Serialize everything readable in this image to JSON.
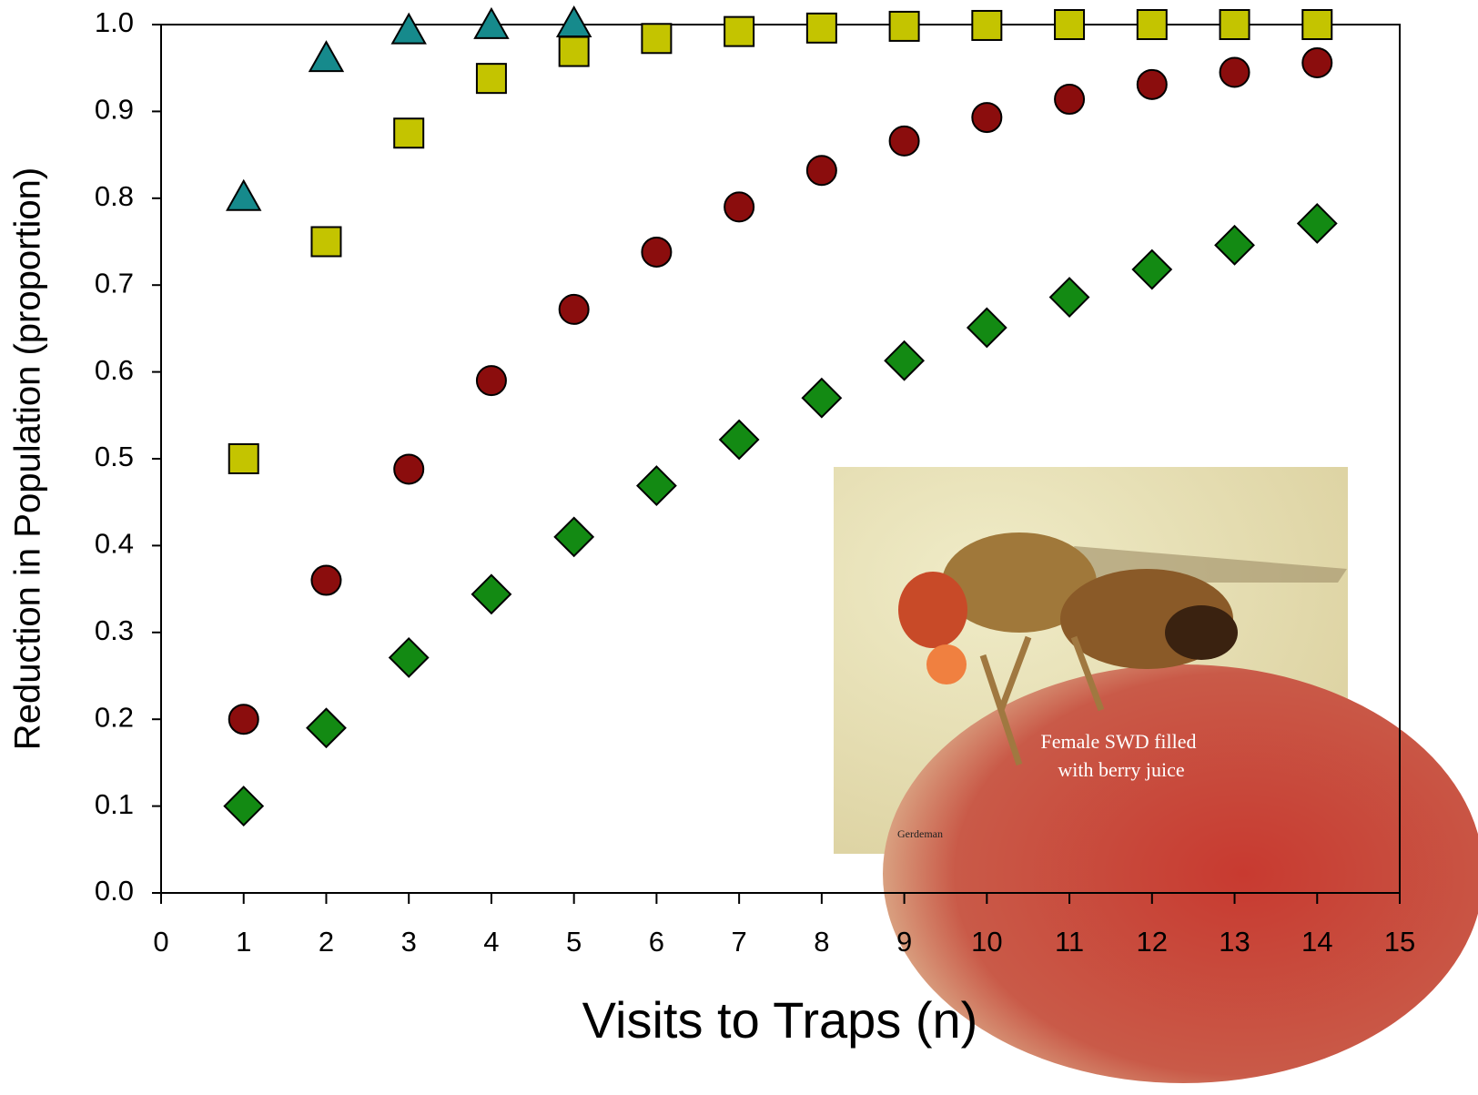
{
  "chart_data": {
    "type": "scatter",
    "x_label": "Visits to Traps (n)",
    "y_label": "Reduction in Population (proportion)",
    "x": [
      1,
      2,
      3,
      4,
      5,
      6,
      7,
      8,
      9,
      10,
      11,
      12,
      13,
      14
    ],
    "series": [
      {
        "marker": "triangle",
        "color": "#168a8c",
        "values": [
          0.8,
          0.96,
          0.992,
          0.998,
          1.0,
          null,
          null,
          null,
          null,
          null,
          null,
          null,
          null,
          null
        ]
      },
      {
        "marker": "square",
        "color": "#c4c400",
        "values": [
          0.5,
          0.75,
          0.875,
          0.938,
          0.969,
          0.984,
          0.992,
          0.996,
          0.998,
          0.999,
          1.0,
          1.0,
          1.0,
          1.0
        ]
      },
      {
        "marker": "circle",
        "color": "#8b0d0d",
        "values": [
          0.2,
          0.36,
          0.488,
          0.59,
          0.672,
          0.738,
          0.79,
          0.832,
          0.866,
          0.893,
          0.914,
          0.931,
          0.945,
          0.956
        ]
      },
      {
        "marker": "diamond",
        "color": "#138a13",
        "values": [
          0.1,
          0.19,
          0.271,
          0.344,
          0.41,
          0.469,
          0.522,
          0.57,
          0.613,
          0.651,
          0.686,
          0.718,
          0.746,
          0.771
        ]
      }
    ],
    "xlim": [
      0,
      15
    ],
    "xticks": [
      0,
      1,
      2,
      3,
      4,
      5,
      6,
      7,
      8,
      9,
      10,
      11,
      12,
      13,
      14,
      15
    ],
    "ylim": [
      0,
      1
    ],
    "yticks": [
      {
        "value": 0,
        "label": "0.0"
      },
      0.1,
      0.2,
      0.3,
      0.4,
      0.5,
      0.6,
      0.7,
      0.8,
      0.9,
      {
        "value": 1,
        "label": "1.0"
      }
    ],
    "grid": false,
    "annotations": [
      "Female SWD filled",
      "with berry juice",
      "Gerdeman"
    ]
  }
}
